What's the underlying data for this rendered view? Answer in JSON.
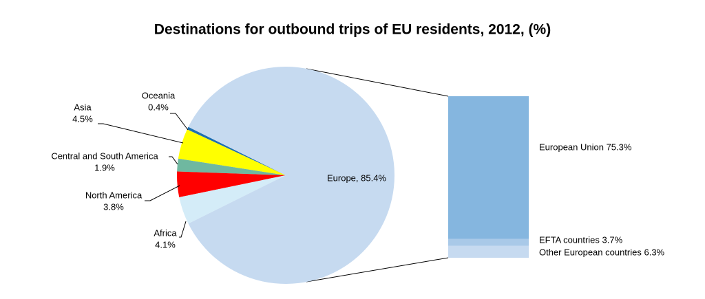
{
  "chart_data": [
    {
      "type": "pie",
      "title": "Destinations for outbound trips of EU residents, 2012, (%)",
      "labels": [
        [
          "Oceania",
          "0.4%"
        ],
        [
          "Asia",
          "4.5%"
        ],
        [
          "Central and South America",
          "1.9%"
        ],
        [
          "North America",
          "3.8%"
        ],
        [
          "Africa",
          "4.1%"
        ],
        [
          "Europe, 85.4%"
        ]
      ],
      "values": [
        0.4,
        4.5,
        1.9,
        3.8,
        4.1,
        85.4
      ],
      "colors": [
        "#1f6fb0",
        "#ffff00",
        "#6fb8a0",
        "#ff0000",
        "#d4ecf8",
        "#c6daf0"
      ]
    },
    {
      "type": "bar",
      "labels": [
        "European Union 75.3%",
        "EFTA countries 3.7%",
        "Other European countries 6.3%"
      ],
      "values": [
        75.3,
        3.7,
        6.3
      ],
      "colors": [
        "#85b6df",
        "#a9c9e8",
        "#c6daf0"
      ]
    }
  ]
}
